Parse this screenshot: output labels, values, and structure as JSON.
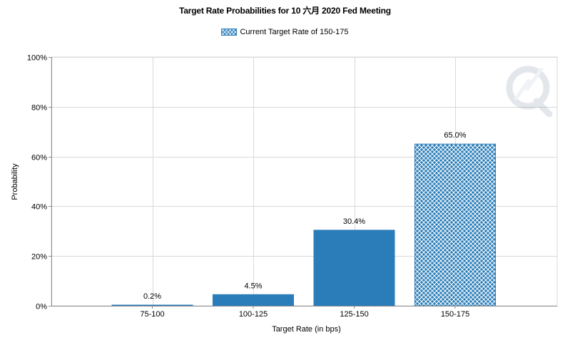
{
  "chart_data": {
    "type": "bar",
    "title": "Target Rate Probabilities for 10 六月 2020  Fed Meeting",
    "legend": [
      "Current Target Rate of 150-175"
    ],
    "legend_placement": "top-center",
    "xlabel": "Target Rate (in bps)",
    "ylabel": "Probability",
    "categories": [
      "75-100",
      "100-125",
      "125-150",
      "150-175"
    ],
    "values": [
      0.2,
      4.5,
      30.4,
      65.0
    ],
    "data_labels": [
      "0.2%",
      "4.5%",
      "30.4%",
      "65.0%"
    ],
    "current_category": "150-175",
    "ylim": [
      0,
      100
    ],
    "yticks": [
      0,
      20,
      40,
      60,
      80,
      100
    ],
    "ytick_labels": [
      "0%",
      "20%",
      "40%",
      "60%",
      "80%",
      "100%"
    ],
    "grid": true,
    "colors": {
      "bar": "#2a7db9",
      "grid": "#d9d9d9",
      "axis": "#8c8c8c"
    }
  }
}
